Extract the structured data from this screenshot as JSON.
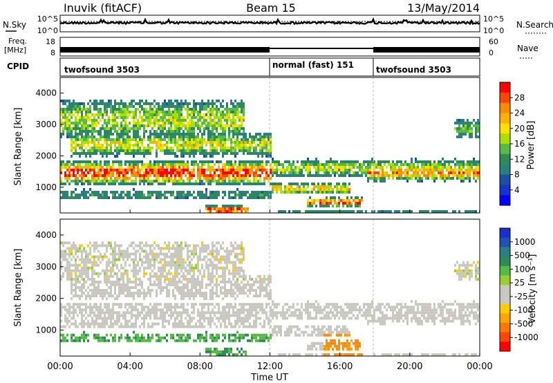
{
  "header": {
    "station": "Inuvik (fitACF)",
    "beam": "Beam 15",
    "date": "13/May/2014"
  },
  "noise_panel": {
    "left_label": "N.Sky",
    "right_label": "N.Search",
    "left_ticks": [
      "10^5",
      "10^0"
    ],
    "right_ticks": [
      "10^5",
      "10^0"
    ]
  },
  "freq_panel": {
    "left_label_1": "Freq.",
    "left_label_2": "[MHz]",
    "right_label": "Nave",
    "left_ticks": [
      "18",
      "8"
    ],
    "right_ticks": [
      "60",
      "0"
    ]
  },
  "cpid_panel": {
    "label": "CPID",
    "segments": [
      {
        "name": "twofsound 3503",
        "start_hour": 0,
        "end_hour": 12
      },
      {
        "name": "normal (fast) 151",
        "start_hour": 12,
        "end_hour": 18
      },
      {
        "name": "twofsound 3503",
        "start_hour": 18,
        "end_hour": 24
      }
    ]
  },
  "power_panel": {
    "ylabel": "Slant Range [km]",
    "yticks": [
      "4000",
      "3000",
      "2000",
      "1000"
    ],
    "colorbar_label": "Power [dB]",
    "colorbar_ticks": [
      "28",
      "24",
      "20",
      "16",
      "12",
      "8",
      "4"
    ],
    "colorbar_colors": [
      "#ff0000",
      "#ff4500",
      "#ff8c00",
      "#ffb000",
      "#ffe000",
      "#aadd00",
      "#55bb44",
      "#2e8b57",
      "#2a7f7f",
      "#1e4fa0",
      "#1a2fd0",
      "#0000ff"
    ]
  },
  "velocity_panel": {
    "ylabel": "Slant Range [km]",
    "yticks": [
      "4000",
      "3000",
      "2000",
      "1000"
    ],
    "colorbar_label": "Velocity [m s⁻¹]",
    "colorbar_ticks": [
      "1000",
      "500",
      "100",
      "25",
      "-25",
      "-100",
      "-500",
      "-1000"
    ],
    "colorbar_colors": [
      "#1a2fd0",
      "#2050b0",
      "#2a7f7f",
      "#2e8b57",
      "#55bb44",
      "#9acd32",
      "#c8c8c0",
      "#c8c8c0",
      "#ffcc00",
      "#ffa500",
      "#ff7700",
      "#ff4500",
      "#ff0000"
    ]
  },
  "xaxis": {
    "ticks": [
      "00:00",
      "04:00",
      "08:00",
      "12:00",
      "16:00",
      "20:00",
      "00:00"
    ],
    "label": "Time UT"
  },
  "chart_data": {
    "type": "heatmap",
    "x_range_hours": [
      0,
      24
    ],
    "y_range_km": [
      180,
      4500
    ],
    "power_bands": [
      {
        "t0": 0,
        "t1": 12,
        "r_center": 1500,
        "r_width": 450,
        "level": "28 dB"
      },
      {
        "t0": 12,
        "t1": 24,
        "r_center": 1550,
        "r_width": 350,
        "level": "16 dB"
      },
      {
        "t0": 14,
        "t1": 17,
        "r_center": 550,
        "r_width": 120,
        "level": "28 dB"
      },
      {
        "t0": 8.5,
        "t1": 10.5,
        "r_center": 300,
        "r_width": 150,
        "level": "28 dB"
      },
      {
        "t0": 0.5,
        "t1": 11,
        "r_center": 3200,
        "r_width": 600,
        "level": "16 dB"
      }
    ],
    "velocity_bands": [
      {
        "t0": 0,
        "t1": 24,
        "r_center": 1550,
        "r_width": 500,
        "level": "-25 to 25 m/s"
      },
      {
        "t0": 0,
        "t1": 12,
        "r_center": 700,
        "r_width": 400,
        "level": "100 m/s"
      },
      {
        "t0": 15,
        "t1": 17.5,
        "r_center": 600,
        "r_width": 300,
        "level": "-500 m/s"
      }
    ]
  }
}
